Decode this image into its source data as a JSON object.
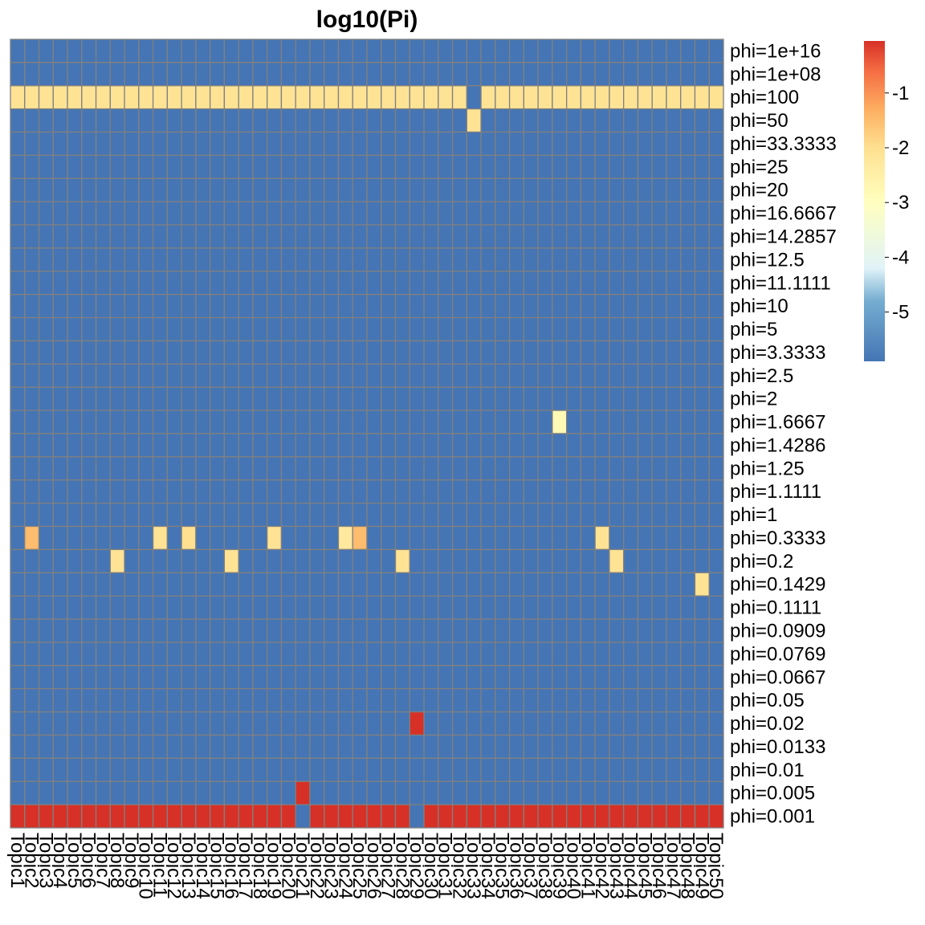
{
  "chart_data": {
    "type": "heatmap",
    "title": "log10(Pi)",
    "row_labels": [
      "phi=1e+16",
      "phi=1e+08",
      "phi=100",
      "phi=50",
      "phi=33.3333",
      "phi=25",
      "phi=20",
      "phi=16.6667",
      "phi=14.2857",
      "phi=12.5",
      "phi=11.1111",
      "phi=10",
      "phi=5",
      "phi=3.3333",
      "phi=2.5",
      "phi=2",
      "phi=1.6667",
      "phi=1.4286",
      "phi=1.25",
      "phi=1.1111",
      "phi=1",
      "phi=0.3333",
      "phi=0.2",
      "phi=0.1429",
      "phi=0.1111",
      "phi=0.0909",
      "phi=0.0769",
      "phi=0.0667",
      "phi=0.05",
      "phi=0.02",
      "phi=0.0133",
      "phi=0.01",
      "phi=0.005",
      "phi=0.001"
    ],
    "col_labels": [
      "Topic1",
      "Topic2",
      "Topic3",
      "Topic4",
      "Topic5",
      "Topic6",
      "Topic7",
      "Topic8",
      "Topic9",
      "Topic10",
      "Topic11",
      "Topic12",
      "Topic13",
      "Topic14",
      "Topic15",
      "Topic16",
      "Topic17",
      "Topic18",
      "Topic19",
      "Topic20",
      "Topic21",
      "Topic22",
      "Topic23",
      "Topic24",
      "Topic25",
      "Topic26",
      "Topic27",
      "Topic28",
      "Topic29",
      "Topic30",
      "Topic31",
      "Topic32",
      "Topic33",
      "Topic34",
      "Topic35",
      "Topic36",
      "Topic37",
      "Topic38",
      "Topic39",
      "Topic40",
      "Topic41",
      "Topic42",
      "Topic43",
      "Topic44",
      "Topic45",
      "Topic46",
      "Topic47",
      "Topic48",
      "Topic49",
      "Topic50"
    ],
    "baseline_value": -5.9,
    "cells": [
      {
        "row": "phi=100",
        "cols": "all_except",
        "except": [
          "Topic33"
        ],
        "value": -2.1
      },
      {
        "row": "phi=50",
        "col": "Topic33",
        "value": -2.1
      },
      {
        "row": "phi=1.6667",
        "col": "Topic39",
        "value": -2.8
      },
      {
        "row": "phi=0.3333",
        "col": "Topic2",
        "value": -1.5
      },
      {
        "row": "phi=0.3333",
        "col": "Topic11",
        "value": -2.1
      },
      {
        "row": "phi=0.3333",
        "col": "Topic13",
        "value": -2.0
      },
      {
        "row": "phi=0.3333",
        "col": "Topic19",
        "value": -2.1
      },
      {
        "row": "phi=0.3333",
        "col": "Topic24",
        "value": -2.3
      },
      {
        "row": "phi=0.3333",
        "col": "Topic25",
        "value": -1.5
      },
      {
        "row": "phi=0.3333",
        "col": "Topic42",
        "value": -2.1
      },
      {
        "row": "phi=0.2",
        "col": "Topic8",
        "value": -2.1
      },
      {
        "row": "phi=0.2",
        "col": "Topic16",
        "value": -2.1
      },
      {
        "row": "phi=0.2",
        "col": "Topic28",
        "value": -2.1
      },
      {
        "row": "phi=0.2",
        "col": "Topic43",
        "value": -2.1
      },
      {
        "row": "phi=0.1429",
        "col": "Topic49",
        "value": -2.1
      },
      {
        "row": "phi=0.02",
        "col": "Topic29",
        "value": -0.05
      },
      {
        "row": "phi=0.005",
        "col": "Topic21",
        "value": -0.05
      },
      {
        "row": "phi=0.001",
        "cols": "all_except",
        "except": [
          "Topic21",
          "Topic29"
        ],
        "value": -0.05
      }
    ],
    "color_scale": {
      "min": -5.9,
      "max": -0.05,
      "ticks": [
        -1,
        -2,
        -3,
        -4,
        -5
      ],
      "tick_labels": [
        "-1",
        "-2",
        "-3",
        "-4",
        "-5"
      ],
      "stops": [
        {
          "value": -5.9,
          "color": "#4575b4"
        },
        {
          "value": -4.8,
          "color": "#74add1"
        },
        {
          "value": -4.2,
          "color": "#e0f3f8"
        },
        {
          "value": -3.0,
          "color": "#ffffbf"
        },
        {
          "value": -2.0,
          "color": "#fee090"
        },
        {
          "value": -1.3,
          "color": "#fdae61"
        },
        {
          "value": -0.6,
          "color": "#f46d43"
        },
        {
          "value": -0.05,
          "color": "#d73027"
        }
      ]
    },
    "grid_color": "#808080"
  }
}
